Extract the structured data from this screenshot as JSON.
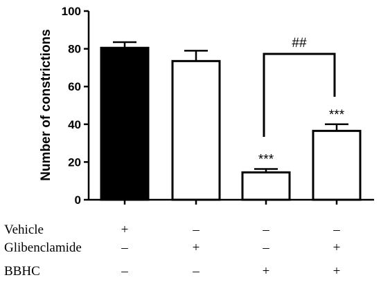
{
  "chart_data": {
    "type": "bar",
    "categories": [
      "Vehicle",
      "Glibenclamide",
      "BBHC",
      "Glibenclamide + BBHC"
    ],
    "values": [
      80.5,
      73.5,
      14.5,
      36.5
    ],
    "errors": [
      3,
      5.5,
      1.8,
      3.5
    ],
    "fills": [
      "#000000",
      "#ffffff",
      "#ffffff",
      "#ffffff"
    ],
    "significance": [
      "",
      "",
      "***",
      "***"
    ],
    "bracket": {
      "from": 2,
      "to": 3,
      "label": "##"
    },
    "title": "",
    "xlabel": "",
    "ylabel": "Number of constrictions",
    "ylim": [
      0,
      100
    ],
    "yticks": [
      0,
      20,
      40,
      60,
      80,
      100
    ],
    "grid": false
  },
  "treatment_table": {
    "rows": [
      {
        "label": "Vehicle",
        "signs": [
          "+",
          "–",
          "–",
          "–"
        ]
      },
      {
        "label": "Glibenclamide",
        "signs": [
          "–",
          "+",
          "–",
          "+"
        ]
      },
      {
        "label": "BBHC",
        "signs": [
          "–",
          "–",
          "+",
          "+"
        ]
      }
    ]
  }
}
